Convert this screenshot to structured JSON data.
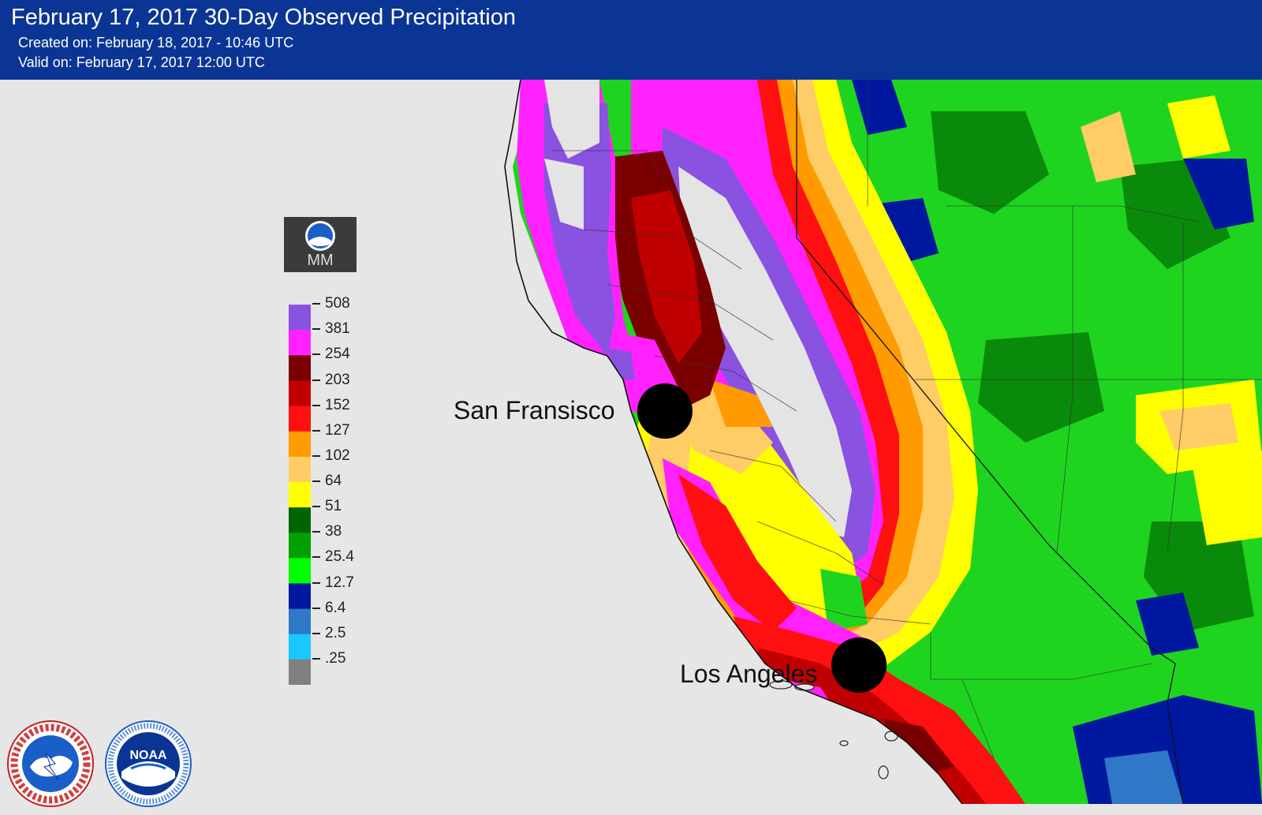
{
  "header": {
    "title": "February 17, 2017 30-Day Observed Precipitation",
    "created": "Created on: February 18, 2017 - 10:46 UTC",
    "valid": "Valid on: February 17, 2017 12:00 UTC"
  },
  "legend": {
    "unit": "MM",
    "noaa_mini_text": "NOAA",
    "labels": [
      "508",
      "381",
      "254",
      "203",
      "152",
      "127",
      "102",
      "64",
      "51",
      "38",
      "25.4",
      "12.7",
      "6.4",
      "2.5",
      ".25"
    ],
    "colors": [
      "#e4e4e4",
      "#8a52e0",
      "#ff22ff",
      "#7a0000",
      "#c00000",
      "#ff1010",
      "#ff9a00",
      "#ffcc66",
      "#ffff00",
      "#006400",
      "#00a000",
      "#00ff00",
      "#0018a0",
      "#2f78c8",
      "#18c8ff",
      "#808080"
    ]
  },
  "cities": {
    "san_francisco": "San Fransisco",
    "los_angeles": "Los Angeles"
  },
  "logos": {
    "nws_text": "NATIONAL WEATHER SERVICE",
    "noaa_text": "NOAA",
    "noaa_ring_text": "NATIONAL OCEANIC AND ATMOSPHERIC ADMINISTRATION · U.S. DEPARTMENT OF COMMERCE"
  },
  "colors": {
    "header_bg": "#0b3594",
    "ocean": "#e6e6e6",
    "green": "#1fd41f",
    "dark_green": "#0a8a0a"
  }
}
